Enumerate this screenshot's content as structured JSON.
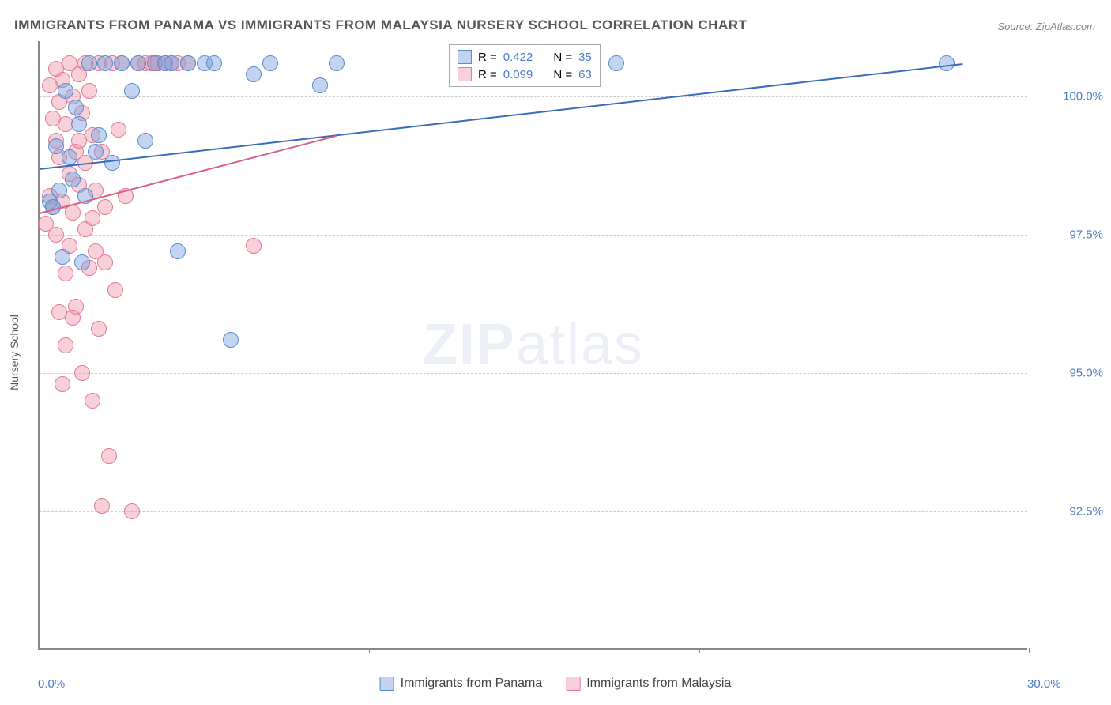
{
  "title": "IMMIGRANTS FROM PANAMA VS IMMIGRANTS FROM MALAYSIA NURSERY SCHOOL CORRELATION CHART",
  "source": "Source: ZipAtlas.com",
  "watermark_zip": "ZIP",
  "watermark_atlas": "atlas",
  "yaxis_label": "Nursery School",
  "colors": {
    "series_a_fill": "rgba(120, 160, 220, 0.45)",
    "series_a_stroke": "#5a8bd0",
    "series_b_fill": "rgba(240, 150, 170, 0.45)",
    "series_b_stroke": "#e07b95",
    "grid": "#ccc",
    "axis": "#888",
    "tick_text": "#4a7bc8",
    "title_text": "#555",
    "trend_a": "#3a6bb8",
    "trend_b": "#d85f85"
  },
  "chart": {
    "type": "scatter",
    "x_range": [
      0,
      30
    ],
    "y_range": [
      90,
      101
    ],
    "y_gridlines": [
      92.5,
      95.0,
      97.5,
      100.0
    ],
    "y_tick_labels": [
      "92.5%",
      "95.0%",
      "97.5%",
      "100.0%"
    ],
    "x_ticks": [
      0,
      10,
      20,
      30
    ],
    "x_tick_labels": [
      "0.0%",
      "",
      "",
      "30.0%"
    ],
    "point_radius": 10,
    "point_stroke_width": 1.5
  },
  "legend_top": {
    "rows": [
      {
        "r_label": "R =",
        "r_val": "0.422",
        "n_label": "N =",
        "n_val": "35",
        "box_fill": "rgba(120,160,220,0.45)",
        "box_stroke": "#5a8bd0"
      },
      {
        "r_label": "R =",
        "r_val": "0.099",
        "n_label": "N =",
        "n_val": "63",
        "box_fill": "rgba(240,150,170,0.45)",
        "box_stroke": "#e07b95"
      }
    ]
  },
  "legend_bottom": {
    "items": [
      {
        "label": "Immigrants from Panama",
        "box_fill": "rgba(120,160,220,0.45)",
        "box_stroke": "#5a8bd0"
      },
      {
        "label": "Immigrants from Malaysia",
        "box_fill": "rgba(240,150,170,0.45)",
        "box_stroke": "#e07b95"
      }
    ]
  },
  "series_a": {
    "name": "Immigrants from Panama",
    "trend": {
      "x1": 0,
      "y1": 98.7,
      "x2": 28,
      "y2": 100.6
    },
    "points": [
      [
        0.3,
        98.1
      ],
      [
        0.5,
        99.1
      ],
      [
        0.8,
        100.1
      ],
      [
        1.0,
        98.5
      ],
      [
        1.2,
        99.5
      ],
      [
        1.5,
        100.6
      ],
      [
        1.8,
        99.3
      ],
      [
        2.0,
        100.6
      ],
      [
        2.2,
        98.8
      ],
      [
        2.5,
        100.6
      ],
      [
        2.8,
        100.1
      ],
      [
        3.0,
        100.6
      ],
      [
        3.2,
        99.2
      ],
      [
        3.5,
        100.6
      ],
      [
        3.8,
        100.6
      ],
      [
        4.0,
        100.6
      ],
      [
        4.2,
        97.2
      ],
      [
        4.5,
        100.6
      ],
      [
        5.0,
        100.6
      ],
      [
        5.3,
        100.6
      ],
      [
        5.8,
        95.6
      ],
      [
        6.5,
        100.4
      ],
      [
        7.0,
        100.6
      ],
      [
        8.5,
        100.2
      ],
      [
        9.0,
        100.6
      ],
      [
        17.5,
        100.6
      ],
      [
        27.5,
        100.6
      ],
      [
        0.7,
        97.1
      ],
      [
        1.3,
        97.0
      ],
      [
        0.4,
        98.0
      ],
      [
        0.6,
        98.3
      ],
      [
        0.9,
        98.9
      ],
      [
        1.1,
        99.8
      ],
      [
        1.4,
        98.2
      ],
      [
        1.7,
        99.0
      ]
    ]
  },
  "series_b": {
    "name": "Immigrants from Malaysia",
    "trend": {
      "x1": 0,
      "y1": 97.9,
      "x2": 9,
      "y2": 99.3
    },
    "points": [
      [
        0.2,
        97.7
      ],
      [
        0.3,
        98.2
      ],
      [
        0.4,
        98.0
      ],
      [
        0.5,
        99.2
      ],
      [
        0.5,
        97.5
      ],
      [
        0.6,
        98.9
      ],
      [
        0.6,
        99.9
      ],
      [
        0.7,
        100.3
      ],
      [
        0.7,
        98.1
      ],
      [
        0.8,
        96.8
      ],
      [
        0.8,
        99.5
      ],
      [
        0.9,
        97.3
      ],
      [
        0.9,
        98.6
      ],
      [
        1.0,
        100.0
      ],
      [
        1.0,
        97.9
      ],
      [
        1.1,
        99.0
      ],
      [
        1.1,
        96.2
      ],
      [
        1.2,
        98.4
      ],
      [
        1.2,
        100.4
      ],
      [
        1.3,
        95.0
      ],
      [
        1.3,
        99.7
      ],
      [
        1.4,
        97.6
      ],
      [
        1.4,
        98.8
      ],
      [
        1.5,
        100.1
      ],
      [
        1.5,
        96.9
      ],
      [
        1.6,
        94.5
      ],
      [
        1.6,
        99.3
      ],
      [
        1.7,
        97.2
      ],
      [
        1.7,
        98.3
      ],
      [
        1.8,
        100.6
      ],
      [
        1.8,
        95.8
      ],
      [
        1.9,
        99.0
      ],
      [
        1.9,
        92.6
      ],
      [
        2.0,
        98.0
      ],
      [
        2.0,
        97.0
      ],
      [
        2.1,
        93.5
      ],
      [
        2.2,
        100.6
      ],
      [
        2.3,
        96.5
      ],
      [
        2.4,
        99.4
      ],
      [
        2.5,
        100.6
      ],
      [
        2.6,
        98.2
      ],
      [
        2.8,
        92.5
      ],
      [
        3.0,
        100.6
      ],
      [
        3.2,
        100.6
      ],
      [
        3.5,
        100.6
      ],
      [
        3.6,
        100.6
      ],
      [
        3.8,
        100.6
      ],
      [
        4.0,
        100.6
      ],
      [
        4.2,
        100.6
      ],
      [
        4.5,
        100.6
      ],
      [
        6.5,
        97.3
      ],
      [
        0.3,
        100.2
      ],
      [
        0.4,
        99.6
      ],
      [
        0.5,
        100.5
      ],
      [
        0.6,
        96.1
      ],
      [
        0.7,
        94.8
      ],
      [
        0.8,
        95.5
      ],
      [
        0.9,
        100.6
      ],
      [
        1.0,
        96.0
      ],
      [
        1.2,
        99.2
      ],
      [
        1.4,
        100.6
      ],
      [
        1.6,
        97.8
      ],
      [
        3.4,
        100.6
      ]
    ]
  }
}
